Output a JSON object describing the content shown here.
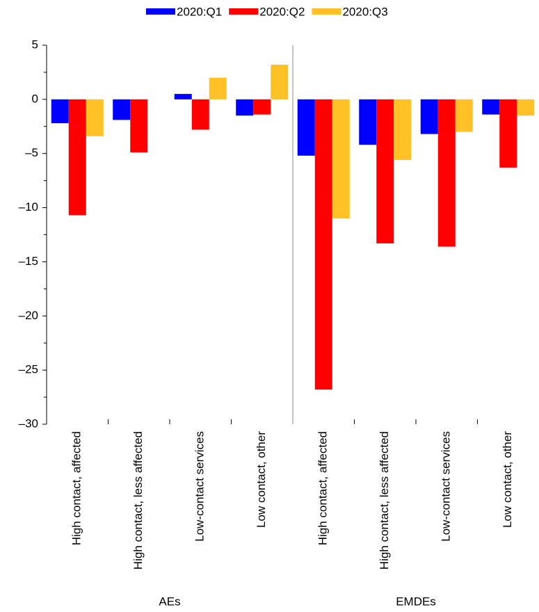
{
  "chart_data": {
    "type": "bar",
    "categories": [
      "High contact, affected",
      "High contact, less affected",
      "Low-contact services",
      "Low contact, other",
      "High contact, affected",
      "High contact, less affected",
      "Low-contact services",
      "Low contact, other"
    ],
    "group_labels": [
      "AEs",
      "EMDEs"
    ],
    "series": [
      {
        "name": "2020:Q1",
        "color": "#0000ff",
        "values": [
          -2.2,
          -1.9,
          0.5,
          -1.5,
          -5.2,
          -4.2,
          -3.2,
          -1.4
        ]
      },
      {
        "name": "2020:Q2",
        "color": "#ff0000",
        "values": [
          -10.7,
          -4.9,
          -2.8,
          -1.4,
          -26.8,
          -13.3,
          -13.6,
          -6.3
        ]
      },
      {
        "name": "2020:Q3",
        "color": "#ffc125",
        "values": [
          -3.4,
          null,
          2.0,
          3.2,
          -11.0,
          -5.6,
          -3.0,
          -1.5
        ]
      }
    ],
    "ylim": [
      -30,
      5
    ],
    "yticks": [
      5,
      0,
      {
        "value": -5,
        "label": "–5"
      },
      {
        "value": -10,
        "label": "–10"
      },
      {
        "value": -15,
        "label": "–15"
      },
      {
        "value": -20,
        "label": "–20"
      },
      {
        "value": -25,
        "label": "–25"
      },
      {
        "value": -30,
        "label": "–30"
      }
    ],
    "minor_yticks": [
      2.5,
      -2.5,
      -7.5,
      -12.5,
      -17.5,
      -22.5,
      -27.5
    ],
    "legend": "top"
  }
}
